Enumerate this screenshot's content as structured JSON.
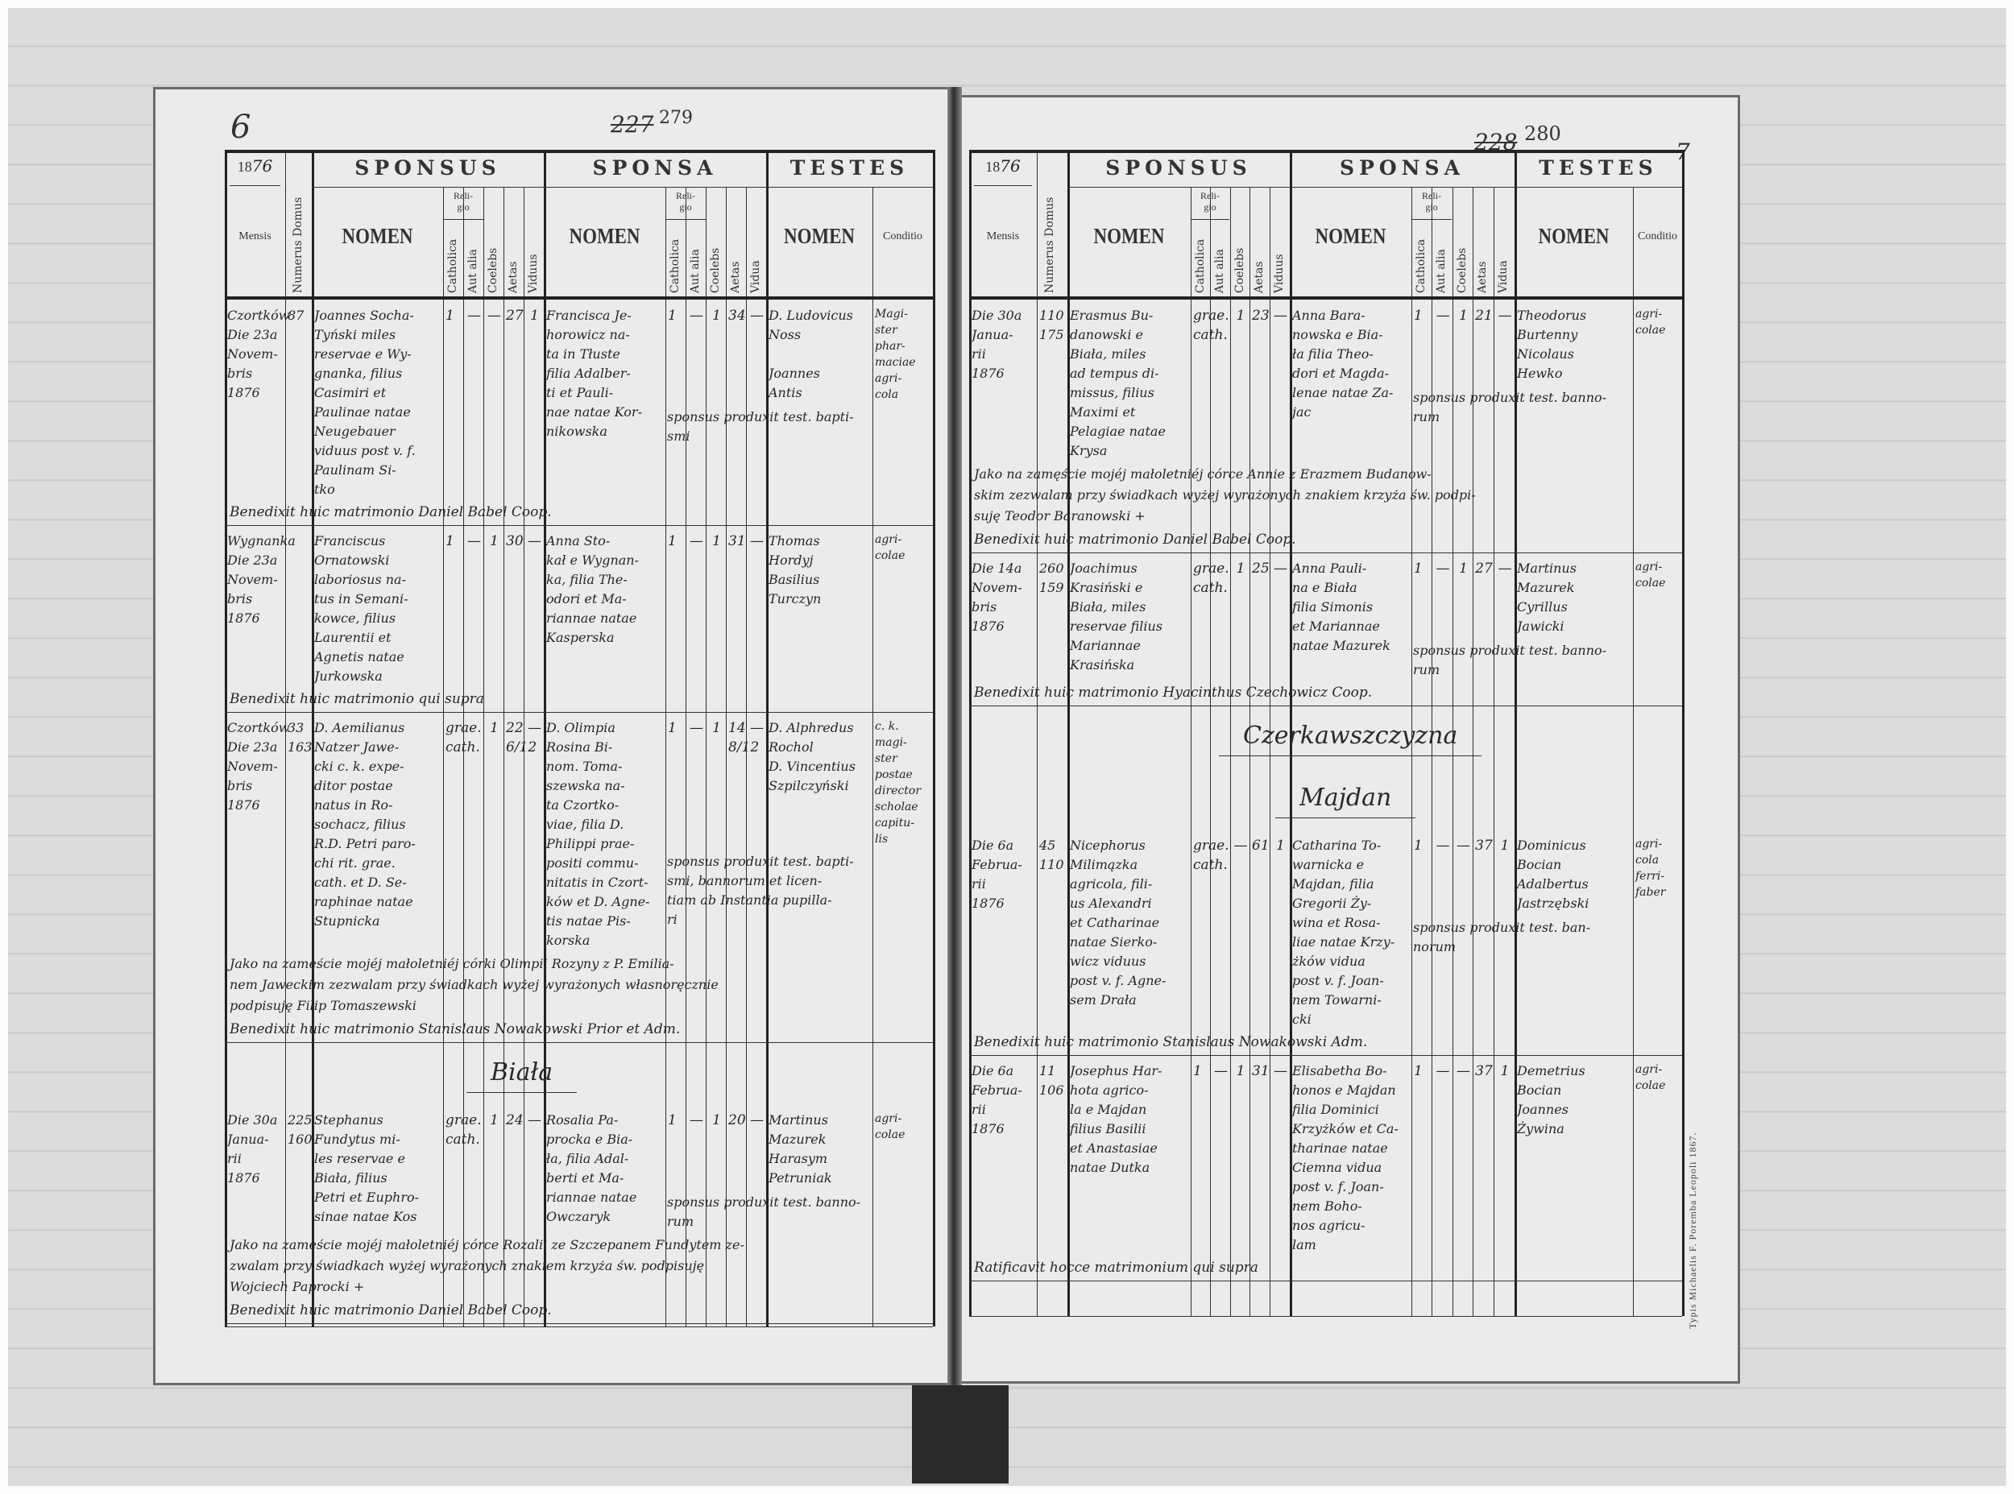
{
  "document": {
    "type": "Parish marriage register (Liber copulatorum), two-page spread",
    "header": {
      "sponsus": "SPONSUS",
      "sponsa": "SPONSA",
      "testes": "TESTES",
      "mensis": "Mensis",
      "numerus_domus": "Numerus Domus",
      "nomen": "NOMEN",
      "religio": "Reli-\ngio",
      "catholica": "Catholica",
      "aut_alia": "Aut alia",
      "coelebs": "Coelebs",
      "aetas": "Aetas",
      "viduus": "Viduus",
      "vidua": "Vidua",
      "conditio": "Conditio"
    },
    "printer_note": "Typis Michaelis F. Poremba Leopoli 1867."
  },
  "pages": [
    {
      "folio": "6",
      "old_number": "227",
      "new_number": "279",
      "year_printed": "18",
      "year_hand": "76",
      "headings": [
        "Biała"
      ],
      "entries": [
        {
          "mensis": "Czortków\nDie 23a\nNovem-\nbris\n1876",
          "domus": "87",
          "sponsus": {
            "nomen": "Joannes Socha-\nTyński miles\nreservae e Wy-\ngnanka, filius\nCasimiri et\nPaulinae natae\nNeugebauer\nviduus post v. f.\nPaulinam Si-\ntko",
            "catholica": "1",
            "aut_alia": "—",
            "coelebs": "—",
            "aetas": "27",
            "viduus": "1"
          },
          "sponsa": {
            "nomen": "Francisca Je-\nhorowicz na-\nta in Tłuste\nfilia Adalber-\nti et Pauli-\nnae natae Kor-\nnikowska",
            "catholica": "1",
            "aut_alia": "—",
            "coelebs": "1",
            "aetas": "34",
            "vidua": "—"
          },
          "testes": {
            "nomen": "D. Ludovicus\nNoss\n\nJoannes\nAntis",
            "conditio": "Magi-\nster\nphar-\nmaciae\nagri-\ncola"
          },
          "note": "sponsus produxit test. bapti-\nsmi",
          "benedixit": "Benedixit huic matrimonio Daniel Babel Coop."
        },
        {
          "mensis": "Wygnanka\nDie 23a\nNovem-\nbris\n1876",
          "domus": "",
          "sponsus": {
            "nomen": "Franciscus\nOrnatowski\nlaboriosus na-\ntus in Semani-\nkowce, filius\nLaurentii et\nAgnetis natae\nJurkowska",
            "catholica": "1",
            "aut_alia": "—",
            "coelebs": "1",
            "aetas": "30",
            "viduus": "—"
          },
          "sponsa": {
            "nomen": "Anna Sto-\nkał e Wygnan-\nka, filia The-\nodori et Ma-\nriannae natae\nKasperska",
            "catholica": "1",
            "aut_alia": "—",
            "coelebs": "1",
            "aetas": "31",
            "vidua": "—"
          },
          "testes": {
            "nomen": "Thomas\nHordyj\nBasilius\nTurczyn",
            "conditio": "agri-\ncolae"
          },
          "benedixit": "Benedixit huic matrimonio qui supra"
        },
        {
          "mensis": "Czortków\nDie 23a\nNovem-\nbris\n1876",
          "domus": "33\n163",
          "sponsus": {
            "nomen": "D. Aemilianus\nNatzer Jawe-\ncki c. k. expe-\nditor postae\nnatus in Ro-\nsochacz, filius\nR.D. Petri paro-\nchi rit. grae.\ncath. et D. Se-\nraphinae natae\nStupnicka",
            "catholica": "grae.\ncath.",
            "aut_alia": "",
            "coelebs": "1",
            "aetas": "22\n6/12",
            "viduus": "—"
          },
          "sponsa": {
            "nomen": "D. Olimpia\nRosina Bi-\nnom. Toma-\nszewska na-\nta Czortko-\nviae, filia D.\nPhilippi prae-\npositi commu-\nnitatis in Czort-\nków et D. Agne-\ntis natae Pis-\nkorska",
            "catholica": "1",
            "aut_alia": "—",
            "coelebs": "1",
            "aetas": "14\n8/12",
            "vidua": "—"
          },
          "testes": {
            "nomen": "D. Alphredus\nRochol\nD. Vincentius\nSzpilczyński",
            "conditio": "c. k.\nmagi-\nster\npostae\ndirector\nscholae\ncapitu-\nlis"
          },
          "note": "sponsus produxit test. bapti-\nsmi, bannorum et licen-\ntiam ab Instantia pupilla-\nri",
          "consent": "Jako na zamęście mojéj małoletniéj córki Olimpii Rozyny z P. Emilia-\nnem Jaweckim zezwalam przy świadkach wyżej wyrażonych własnoręcznie\npodpisuję Filip Tomaszewski",
          "benedixit": "Benedixit huic matrimonio Stanislaus Nowakowski Prior et Adm."
        },
        {
          "mensis": "Die 30a\nJanua-\nrii\n1876",
          "domus": "225\n160",
          "sponsus": {
            "nomen": "Stephanus\nFundytus mi-\nles reservae e\nBiała, filius\nPetri et Euphro-\nsinae natae Kos",
            "catholica": "grae.\ncath.",
            "aut_alia": "",
            "coelebs": "1",
            "aetas": "24",
            "viduus": "—"
          },
          "sponsa": {
            "nomen": "Rosalia Pa-\nprocka e Bia-\nła, filia Adal-\nberti et Ma-\nriannae natae\nOwczaryk",
            "catholica": "1",
            "aut_alia": "—",
            "coelebs": "1",
            "aetas": "20",
            "vidua": "—"
          },
          "testes": {
            "nomen": "Martinus\nMazurek\nHarasym\nPetruniak",
            "conditio": "agri-\ncolae"
          },
          "note": "sponsus produxit test. banno-\nrum",
          "consent": "Jako na zamęście mojéj małoletniéj córce Rozalii ze Szczepanem Fundytem ze-\nzwalam przy świadkach wyżej wyrażonych znakiem krzyża św. podpisuję\nWojciech Paprocki +",
          "benedixit": "Benedixit huic matrimonio Daniel Babel Coop."
        }
      ]
    },
    {
      "folio": "7",
      "old_number": "228",
      "new_number": "280",
      "year_printed": "18",
      "year_hand": "76",
      "headings": [
        "Czerkawszczyzna",
        "Majdan"
      ],
      "entries": [
        {
          "mensis": "Die 30a\nJanua-\nrii\n1876",
          "domus": "110\n175",
          "sponsus": {
            "nomen": "Erasmus Bu-\ndanowski e\nBiała, miles\nad tempus di-\nmissus, filius\nMaximi et\nPelagiae natae\nKrysa",
            "catholica": "grae.\ncath.",
            "aut_alia": "",
            "coelebs": "1",
            "aetas": "23",
            "viduus": "—"
          },
          "sponsa": {
            "nomen": "Anna Bara-\nnowska e Bia-\nła filia Theo-\ndori et Magda-\nlenae natae Za-\njac",
            "catholica": "1",
            "aut_alia": "—",
            "coelebs": "1",
            "aetas": "21",
            "vidua": "—"
          },
          "testes": {
            "nomen": "Theodorus\nBurtenny\nNicolaus\nHewko",
            "conditio": "agri-\ncolae"
          },
          "note": "sponsus produxit test. banno-\nrum",
          "consent": "Jako na zamęście mojéj małoletniéj córce Annie z Erazmem Budanow-\nskim zezwalam przy świadkach wyżej wyrażonych znakiem krzyża św. podpi-\nsuję Teodor Baranowski +",
          "benedixit": "Benedixit huic matrimonio Daniel Babel Coop."
        },
        {
          "mensis": "Die 14a\nNovem-\nbris\n1876",
          "domus": "260\n159",
          "sponsus": {
            "nomen": "Joachimus\nKrasiński e\nBiała, miles\nreservae filius\nMariannae\nKrasińska",
            "catholica": "grae.\ncath.",
            "aut_alia": "",
            "coelebs": "1",
            "aetas": "25",
            "viduus": "—"
          },
          "sponsa": {
            "nomen": "Anna Pauli-\nna e Biała\nfilia Simonis\net Mariannae\nnatae Mazurek",
            "catholica": "1",
            "aut_alia": "—",
            "coelebs": "1",
            "aetas": "27",
            "vidua": "—"
          },
          "testes": {
            "nomen": "Martinus\nMazurek\nCyrillus\nJawicki",
            "conditio": "agri-\ncolae"
          },
          "note": "sponsus produxit test. banno-\nrum",
          "benedixit": "Benedixit huic matrimonio Hyacinthus Czechowicz Coop."
        },
        {
          "mensis": "Die 6a\nFebrua-\nrii\n1876",
          "domus": "45\n110",
          "sponsus": {
            "nomen": "Nicephorus\nMilimązka\nagricola, fili-\nus Alexandri\net Catharinae\nnatae Sierko-\nwicz viduus\npost v. f. Agne-\nsem Drała",
            "catholica": "grae.\ncath.",
            "aut_alia": "",
            "coelebs": "—",
            "aetas": "61",
            "viduus": "1"
          },
          "sponsa": {
            "nomen": "Catharina To-\nwarnicka e\nMajdan, filia\nGregorii Ży-\nwina et Rosa-\nliae natae Krzy-\nżków vidua\npost v. f. Joan-\nnem Towarni-\ncki",
            "catholica": "1",
            "aut_alia": "—",
            "coelebs": "—",
            "aetas": "37",
            "vidua": "1"
          },
          "testes": {
            "nomen": "Dominicus\nBocian\nAdalbertus\nJastrzębski",
            "conditio": "agri-\ncola\nferri-\nfaber"
          },
          "note": "sponsus produxit test. ban-\nnorum",
          "benedixit": "Benedixit huic matrimonio Stanislaus Nowakowski Adm."
        },
        {
          "mensis": "Die 6a\nFebrua-\nrii\n1876",
          "domus": "11\n106",
          "sponsus": {
            "nomen": "Josephus Har-\nhota agrico-\nla e Majdan\nfilius Basilii\net Anastasiae\nnatae Dutka",
            "catholica": "1",
            "aut_alia": "—",
            "coelebs": "1",
            "aetas": "31",
            "viduus": "—"
          },
          "sponsa": {
            "nomen": "Elisabetha Bo-\nhonos e Majdan\nfilia Dominici\nKrzyżków et Ca-\ntharinae natae\nCiemna vidua\npost v. f. Joan-\nnem Boho-\nnos agricu-\nlam",
            "catholica": "1",
            "aut_alia": "—",
            "coelebs": "—",
            "aetas": "37",
            "vidua": "1"
          },
          "testes": {
            "nomen": "Demetrius\nBocian\nJoannes\nŻywina",
            "conditio": "agri-\ncolae"
          },
          "benedixit": "Ratificavit hocce matrimonium qui supra"
        }
      ]
    }
  ]
}
